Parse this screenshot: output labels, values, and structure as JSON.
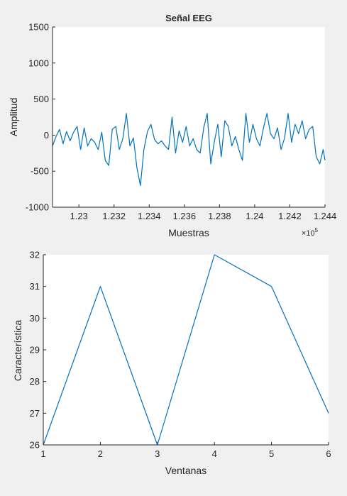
{
  "chart_data": [
    {
      "type": "line",
      "title": "Señal EEG",
      "xlabel": "Muestras",
      "ylabel": "Amplitud",
      "x_exponent_label": "×10",
      "x_exponent": "5",
      "xlim": [
        1.2285,
        1.244
      ],
      "ylim": [
        -1000,
        1500
      ],
      "x_ticks": [
        1.23,
        1.232,
        1.234,
        1.236,
        1.238,
        1.24,
        1.242,
        1.244
      ],
      "x_tick_labels": [
        "1.23",
        "1.232",
        "1.234",
        "1.236",
        "1.238",
        "1.24",
        "1.242",
        "1.244"
      ],
      "y_ticks": [
        -1000,
        -500,
        0,
        500,
        1000,
        1500
      ],
      "y_tick_labels": [
        "-1000",
        "-500",
        "0",
        "500",
        "1000",
        "1500"
      ],
      "grid": false,
      "color": "#0072bd",
      "series": [
        {
          "x": [
            1.2285,
            1.2287,
            1.2289,
            1.2291,
            1.2293,
            1.2295,
            1.2297,
            1.2299,
            1.2301,
            1.2303,
            1.2305,
            1.2307,
            1.2309,
            1.2311,
            1.2313,
            1.2315,
            1.2317,
            1.2319,
            1.2321,
            1.2323,
            1.2325,
            1.2327,
            1.2329,
            1.2331,
            1.2333,
            1.2335,
            1.2337,
            1.2339,
            1.2341,
            1.2343,
            1.2345,
            1.2347,
            1.2349,
            1.2351,
            1.2353,
            1.2355,
            1.2357,
            1.2359,
            1.2361,
            1.2363,
            1.2365,
            1.2367,
            1.2369,
            1.2371,
            1.2373,
            1.2375,
            1.2377,
            1.2379,
            1.2381,
            1.2383,
            1.2385,
            1.2387,
            1.2389,
            1.2391,
            1.2393,
            1.2395,
            1.2397,
            1.2399,
            1.2401,
            1.2403,
            1.2405,
            1.2407,
            1.2409,
            1.2411,
            1.2413,
            1.2415,
            1.2417,
            1.2419,
            1.2421,
            1.2423,
            1.2425,
            1.2427,
            1.2429,
            1.2431,
            1.2433,
            1.2435,
            1.2437,
            1.2439,
            1.244
          ],
          "y": [
            -150,
            -20,
            80,
            -120,
            50,
            -80,
            40,
            120,
            -200,
            100,
            -150,
            -50,
            -100,
            -200,
            40,
            -350,
            -420,
            80,
            120,
            -200,
            -50,
            300,
            -150,
            -40,
            -450,
            -700,
            -200,
            50,
            150,
            -60,
            -120,
            -80,
            -150,
            -200,
            250,
            -250,
            60,
            -100,
            120,
            -150,
            -50,
            -200,
            -250,
            100,
            300,
            -400,
            -100,
            150,
            -300,
            200,
            120,
            -150,
            -20,
            -200,
            -350,
            300,
            -100,
            150,
            -50,
            -150,
            100,
            300,
            20,
            -50,
            100,
            -200,
            -40,
            300,
            -100,
            150,
            20,
            200,
            -50,
            80,
            120,
            -300,
            -400,
            -200,
            -350
          ]
        }
      ]
    },
    {
      "type": "line",
      "title": "",
      "xlabel": "Ventanas",
      "ylabel": "Característica",
      "xlim": [
        1,
        6
      ],
      "ylim": [
        26,
        32
      ],
      "x_tick_labels": [
        "1",
        "2",
        "3",
        "4",
        "5",
        "6"
      ],
      "y_tick_labels": [
        "26",
        "27",
        "28",
        "29",
        "30",
        "31",
        "32"
      ],
      "grid": false,
      "color": "#0072bd",
      "series": [
        {
          "x": [
            1,
            2,
            3,
            4,
            5,
            6
          ],
          "y": [
            26,
            31,
            26,
            32,
            31,
            27
          ]
        }
      ]
    }
  ]
}
